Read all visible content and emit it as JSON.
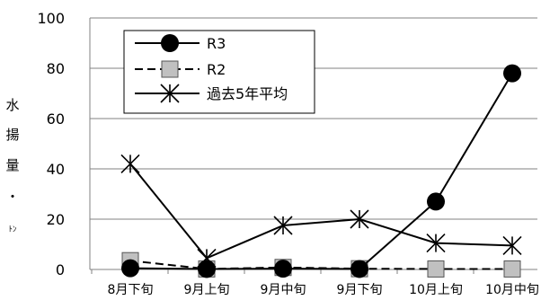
{
  "chart_data": {
    "type": "line",
    "title": "",
    "xlabel": "",
    "ylabel_chars": [
      "水",
      "揚",
      "量",
      "・",
      "ﾄﾝ"
    ],
    "categories": [
      "8月下旬",
      "9月上旬",
      "9月中旬",
      "9月下旬",
      "10月上旬",
      "10月中旬"
    ],
    "ylim": [
      0,
      100
    ],
    "yticks": [
      0,
      20,
      40,
      60,
      80,
      100
    ],
    "grid": "horizontal",
    "legend_position": "top-left",
    "series": [
      {
        "name": "R3",
        "marker": "circle-filled",
        "line": "solid",
        "color": "#000000",
        "values": [
          0.5,
          0.2,
          0.3,
          0.2,
          27,
          78
        ]
      },
      {
        "name": "R2",
        "marker": "square-gray",
        "line": "dashed",
        "color": "#000000",
        "marker_fill": "#c0c0c0",
        "values": [
          3.5,
          0.2,
          0.8,
          0.3,
          0.2,
          0.2
        ]
      },
      {
        "name": "過去5年平均",
        "marker": "star",
        "line": "solid",
        "color": "#000000",
        "values": [
          42,
          4.5,
          17.5,
          20,
          10.5,
          9.5
        ]
      }
    ]
  }
}
